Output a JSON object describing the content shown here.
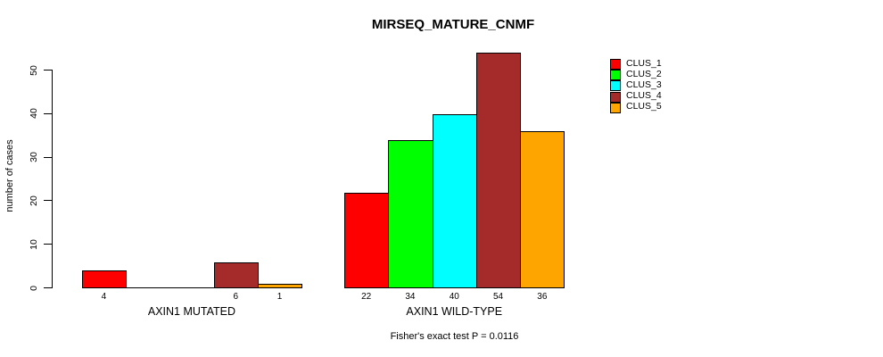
{
  "chart_data": {
    "type": "bar",
    "title": "MIRSEQ_MATURE_CNMF",
    "ylabel": "number of cases",
    "xlabel": "",
    "ylim": [
      0,
      50
    ],
    "yticks": [
      0,
      10,
      20,
      30,
      40,
      50
    ],
    "grid": false,
    "legend_position": "top-right",
    "categories": [
      "AXIN1 MUTATED",
      "AXIN1 WILD-TYPE"
    ],
    "series": [
      {
        "name": "CLUS_1",
        "color": "#FF0000",
        "values": [
          4,
          22
        ]
      },
      {
        "name": "CLUS_2",
        "color": "#00FF00",
        "values": [
          0,
          34
        ]
      },
      {
        "name": "CLUS_3",
        "color": "#00FFFF",
        "values": [
          0,
          40
        ]
      },
      {
        "name": "CLUS_4",
        "color": "#A52A2A",
        "values": [
          6,
          54
        ]
      },
      {
        "name": "CLUS_5",
        "color": "#FFA500",
        "values": [
          1,
          36
        ]
      }
    ],
    "bar_value_labels": [
      [
        "4",
        "",
        "",
        "6",
        "1"
      ],
      [
        "22",
        "34",
        "40",
        "54",
        "36"
      ]
    ],
    "footnote": "Fisher's exact test P = 0.0116"
  }
}
